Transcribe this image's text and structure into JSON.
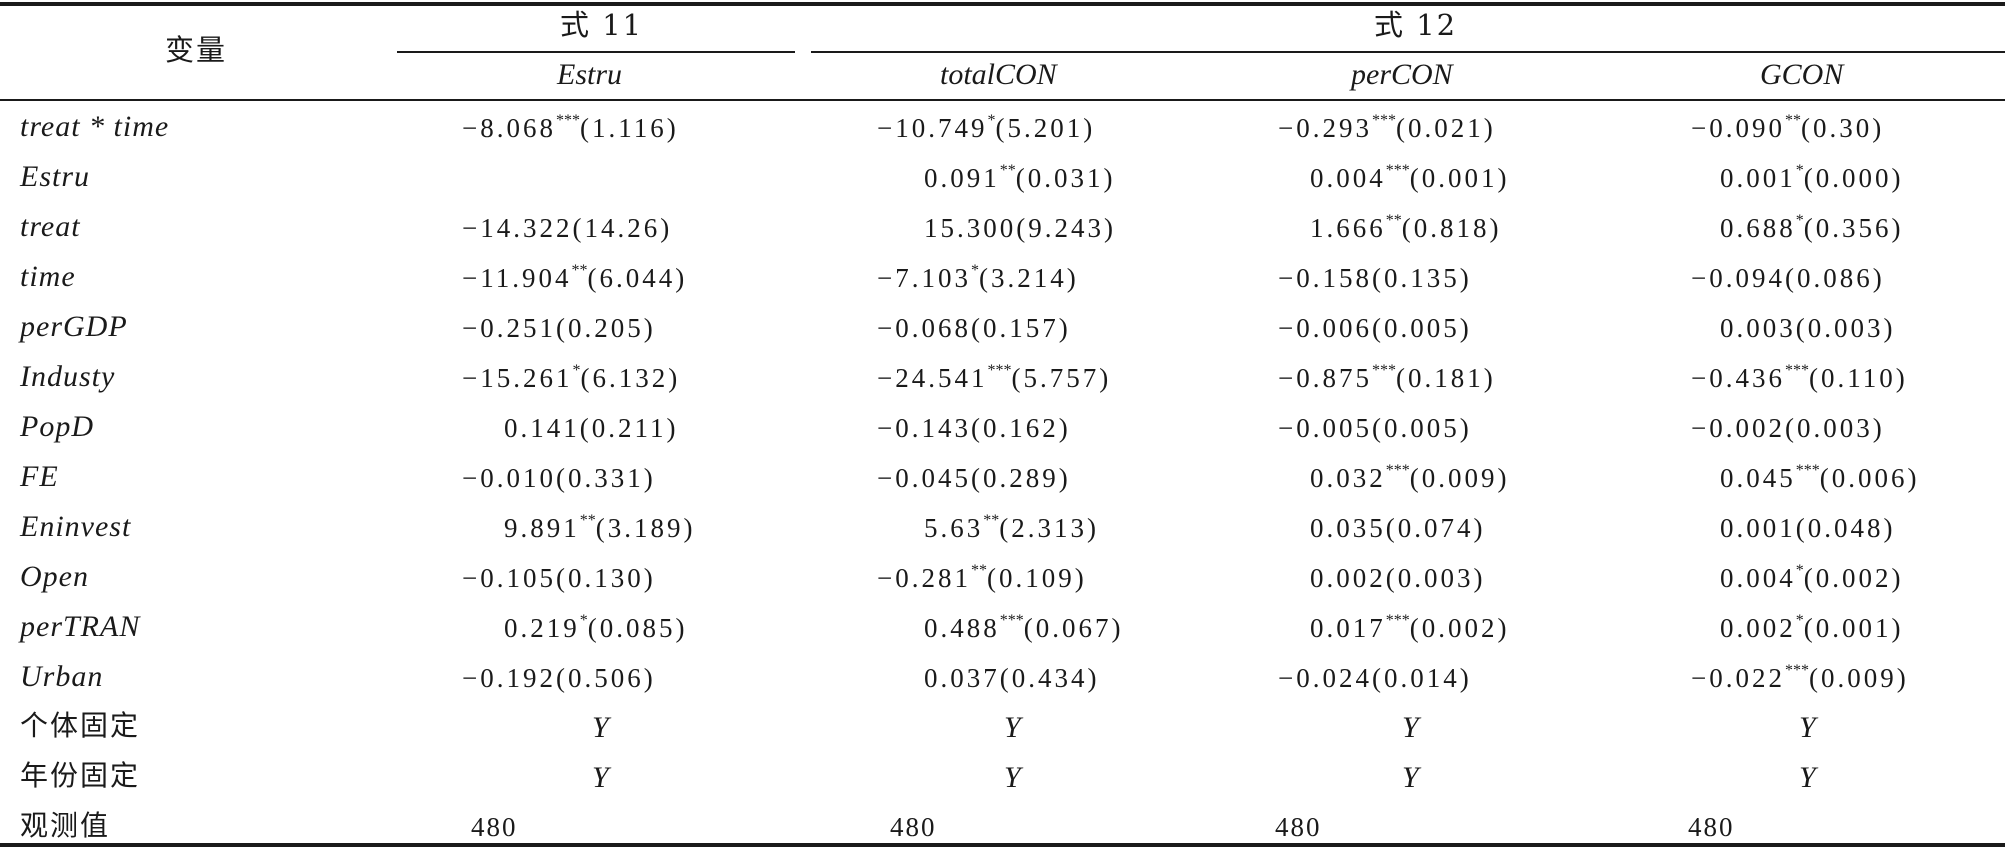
{
  "table": {
    "header": {
      "variable": "变量",
      "eq11": "式 11",
      "eq12": "式 12",
      "columns": [
        "Estru",
        "totalCON",
        "perCON",
        "GCON"
      ]
    },
    "rows": [
      {
        "var": "treat * time",
        "cells": [
          {
            "v": "−8.068",
            "s": "***",
            "se": "(1.116)"
          },
          {
            "v": "−10.749",
            "s": "*",
            "se": "(5.201)"
          },
          {
            "v": "−0.293",
            "s": "***",
            "se": "(0.021)"
          },
          {
            "v": "−0.090",
            "s": "**",
            "se": "(0.30)"
          }
        ]
      },
      {
        "var": "Estru",
        "cells": [
          {
            "v": "",
            "s": "",
            "se": ""
          },
          {
            "v": "0.091",
            "s": "**",
            "se": "(0.031)"
          },
          {
            "v": "0.004",
            "s": "***",
            "se": "(0.001)"
          },
          {
            "v": "0.001",
            "s": "*",
            "se": "(0.000)"
          }
        ]
      },
      {
        "var": "treat",
        "cells": [
          {
            "v": "−14.322",
            "s": "",
            "se": "(14.26)"
          },
          {
            "v": "15.300",
            "s": "",
            "se": "(9.243)"
          },
          {
            "v": "1.666",
            "s": "**",
            "se": "(0.818)"
          },
          {
            "v": "0.688",
            "s": "*",
            "se": "(0.356)"
          }
        ]
      },
      {
        "var": "time",
        "cells": [
          {
            "v": "−11.904",
            "s": "**",
            "se": "(6.044)"
          },
          {
            "v": "−7.103",
            "s": "*",
            "se": "(3.214)"
          },
          {
            "v": "−0.158",
            "s": "",
            "se": "(0.135)"
          },
          {
            "v": "−0.094",
            "s": "",
            "se": "(0.086)"
          }
        ]
      },
      {
        "var": "perGDP",
        "cells": [
          {
            "v": "−0.251",
            "s": "",
            "se": "(0.205)"
          },
          {
            "v": "−0.068",
            "s": "",
            "se": "(0.157)"
          },
          {
            "v": "−0.006",
            "s": "",
            "se": "(0.005)"
          },
          {
            "v": "0.003",
            "s": "",
            "se": "(0.003)"
          }
        ]
      },
      {
        "var": "Industy",
        "cells": [
          {
            "v": "−15.261",
            "s": "*",
            "se": "(6.132)"
          },
          {
            "v": "−24.541",
            "s": "***",
            "se": "(5.757)"
          },
          {
            "v": "−0.875",
            "s": "***",
            "se": "(0.181)"
          },
          {
            "v": "−0.436",
            "s": "***",
            "se": "(0.110)"
          }
        ]
      },
      {
        "var": "PopD",
        "cells": [
          {
            "v": "0.141",
            "s": "",
            "se": "(0.211)"
          },
          {
            "v": "−0.143",
            "s": "",
            "se": "(0.162)"
          },
          {
            "v": "−0.005",
            "s": "",
            "se": "(0.005)"
          },
          {
            "v": "−0.002",
            "s": "",
            "se": "(0.003)"
          }
        ]
      },
      {
        "var": "FE",
        "cells": [
          {
            "v": "−0.010",
            "s": "",
            "se": "(0.331)"
          },
          {
            "v": "−0.045",
            "s": "",
            "se": "(0.289)"
          },
          {
            "v": "0.032",
            "s": "***",
            "se": "(0.009)"
          },
          {
            "v": "0.045",
            "s": "***",
            "se": "(0.006)"
          }
        ]
      },
      {
        "var": "Eninvest",
        "cells": [
          {
            "v": "9.891",
            "s": "**",
            "se": "(3.189)"
          },
          {
            "v": "5.63",
            "s": "**",
            "se": "(2.313)"
          },
          {
            "v": "0.035",
            "s": "",
            "se": "(0.074)"
          },
          {
            "v": "0.001",
            "s": "",
            "se": "(0.048)"
          }
        ]
      },
      {
        "var": "Open",
        "cells": [
          {
            "v": "−0.105",
            "s": "",
            "se": "(0.130)"
          },
          {
            "v": "−0.281",
            "s": "**",
            "se": "(0.109)"
          },
          {
            "v": "0.002",
            "s": "",
            "se": "(0.003)"
          },
          {
            "v": "0.004",
            "s": "*",
            "se": "(0.002)"
          }
        ]
      },
      {
        "var": "perTRAN",
        "cells": [
          {
            "v": "0.219",
            "s": "*",
            "se": "(0.085)"
          },
          {
            "v": "0.488",
            "s": "***",
            "se": "(0.067)"
          },
          {
            "v": "0.017",
            "s": "***",
            "se": "(0.002)"
          },
          {
            "v": "0.002",
            "s": "*",
            "se": "(0.001)"
          }
        ]
      },
      {
        "var": "Urban",
        "cells": [
          {
            "v": "−0.192",
            "s": "",
            "se": "(0.506)"
          },
          {
            "v": "0.037",
            "s": "",
            "se": "(0.434)"
          },
          {
            "v": "−0.024",
            "s": "",
            "se": "(0.014)"
          },
          {
            "v": "−0.022",
            "s": "***",
            "se": "(0.009)"
          }
        ]
      }
    ],
    "individual_fixed": {
      "label": "个体固定",
      "values": [
        "Y",
        "Y",
        "Y",
        "Y"
      ]
    },
    "year_fixed": {
      "label": "年份固定",
      "values": [
        "Y",
        "Y",
        "Y",
        "Y"
      ]
    },
    "observations": {
      "label": "观测值",
      "values": [
        "480",
        "480",
        "480",
        "480"
      ]
    }
  }
}
